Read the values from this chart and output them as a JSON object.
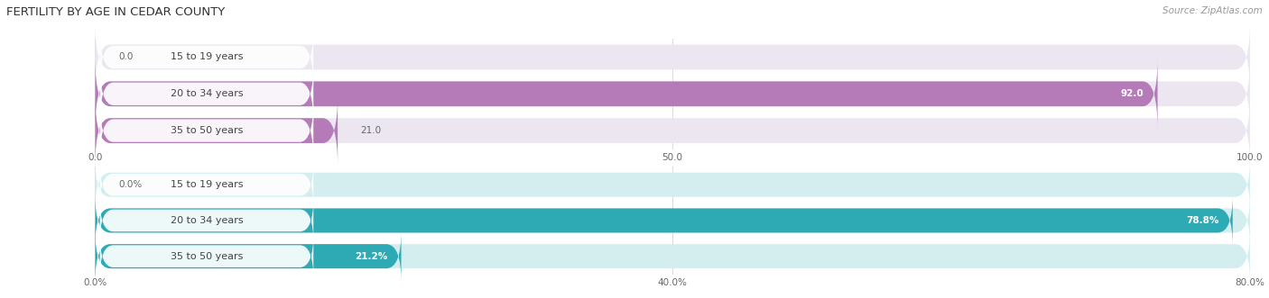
{
  "title": "FERTILITY BY AGE IN CEDAR COUNTY",
  "source_text": "Source: ZipAtlas.com",
  "top_chart": {
    "categories": [
      "15 to 19 years",
      "20 to 34 years",
      "35 to 50 years"
    ],
    "values": [
      0.0,
      92.0,
      21.0
    ],
    "max_value": 100.0,
    "tick_values": [
      0.0,
      50.0,
      100.0
    ],
    "tick_labels": [
      "0.0",
      "50.0",
      "100.0"
    ],
    "bar_color": "#b57ab8",
    "bar_bg_color": "#ebe6f0",
    "label_pill_color": "#f5f2f7",
    "value_label_inside_color": "#ffffff",
    "value_label_outside_color": "#666666",
    "cat_label_color": "#444444"
  },
  "bottom_chart": {
    "categories": [
      "15 to 19 years",
      "20 to 34 years",
      "35 to 50 years"
    ],
    "values": [
      0.0,
      78.8,
      21.2
    ],
    "max_value": 80.0,
    "tick_values": [
      0.0,
      40.0,
      80.0
    ],
    "tick_labels": [
      "0.0%",
      "40.0%",
      "80.0%"
    ],
    "bar_color": "#2eaab4",
    "bar_bg_color": "#d4eef0",
    "label_pill_color": "#eef7f8",
    "value_label_inside_color": "#ffffff",
    "value_label_outside_color": "#666666",
    "cat_label_color": "#444444"
  },
  "title_fontsize": 9.5,
  "source_fontsize": 7.5,
  "value_fontsize": 7.5,
  "tick_fontsize": 7.5,
  "cat_fontsize": 8,
  "background_color": "#ffffff",
  "grid_color": "#dddddd"
}
